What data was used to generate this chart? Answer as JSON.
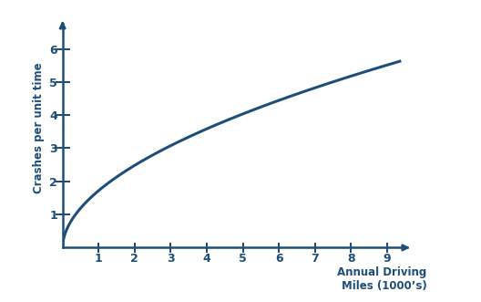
{
  "title": "",
  "xlabel_line1": "Annual Driving",
  "xlabel_line2": "Miles (1000’s)",
  "ylabel": "Crashes per unit time",
  "line_color": "#1F4E79",
  "axis_color": "#1F4E79",
  "tick_color": "#1F4E79",
  "label_color": "#1F4E79",
  "background_color": "#ffffff",
  "x_ticks": [
    1,
    2,
    3,
    4,
    5,
    6,
    7,
    8,
    9
  ],
  "y_ticks": [
    1,
    2,
    3,
    4,
    5,
    6
  ],
  "xlim": [
    0,
    10.0
  ],
  "ylim": [
    0,
    7.2
  ],
  "power_coeff": 1.72,
  "power_exp": 0.53,
  "line_width": 2.2,
  "xlabel_fontsize": 8.5,
  "ylabel_fontsize": 8.5,
  "tick_fontsize": 9
}
